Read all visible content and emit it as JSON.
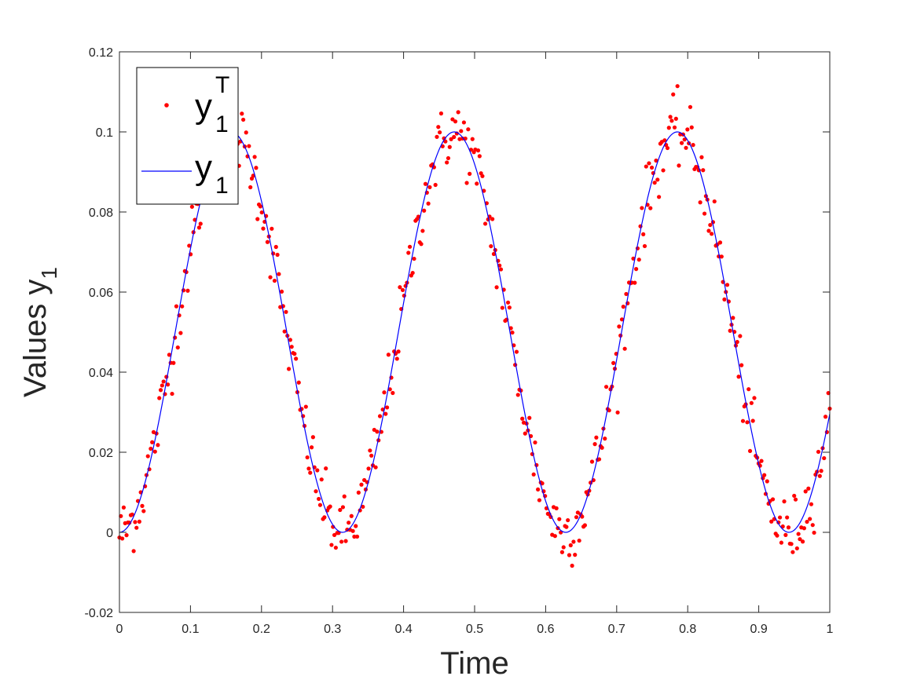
{
  "chart_data": {
    "type": "scatter",
    "xlabel": "Time",
    "ylabel": {
      "main": "Values y",
      "sub": "1"
    },
    "xlim": [
      0,
      1
    ],
    "ylim": [
      -0.02,
      0.12
    ],
    "xticks": [
      "0",
      "0.1",
      "0.2",
      "0.3",
      "0.4",
      "0.5",
      "0.6",
      "0.7",
      "0.8",
      "0.9",
      "1"
    ],
    "yticks": [
      "-0.02",
      "0",
      "0.02",
      "0.04",
      "0.06",
      "0.08",
      "0.1",
      "0.12"
    ],
    "grid": false,
    "legend_position": "top-left",
    "series": [
      {
        "name": {
          "main": "y",
          "sub": "1",
          "sup": "T"
        },
        "kind": "markers",
        "color": "#ff0000",
        "sample_count": 500,
        "x_range": [
          0,
          1
        ],
        "trend": "approximately 0.05 - 0.05*cos(20*x) plus noise (std about 0.004)"
      },
      {
        "name": {
          "main": "y",
          "sub": "1"
        },
        "kind": "line",
        "color": "#0000ff",
        "x": [
          0,
          0.05,
          0.1,
          0.157,
          0.2,
          0.25,
          0.314,
          0.35,
          0.4,
          0.471,
          0.5,
          0.55,
          0.628,
          0.7,
          0.785,
          0.85,
          0.9,
          0.942,
          1.0
        ],
        "y": [
          0,
          0.023,
          0.071,
          0.1,
          0.083,
          0.036,
          0,
          0.018,
          0.061,
          0.1,
          0.092,
          0.06,
          0,
          0.049,
          0.1,
          0.065,
          0.019,
          0,
          0.03
        ]
      }
    ]
  }
}
